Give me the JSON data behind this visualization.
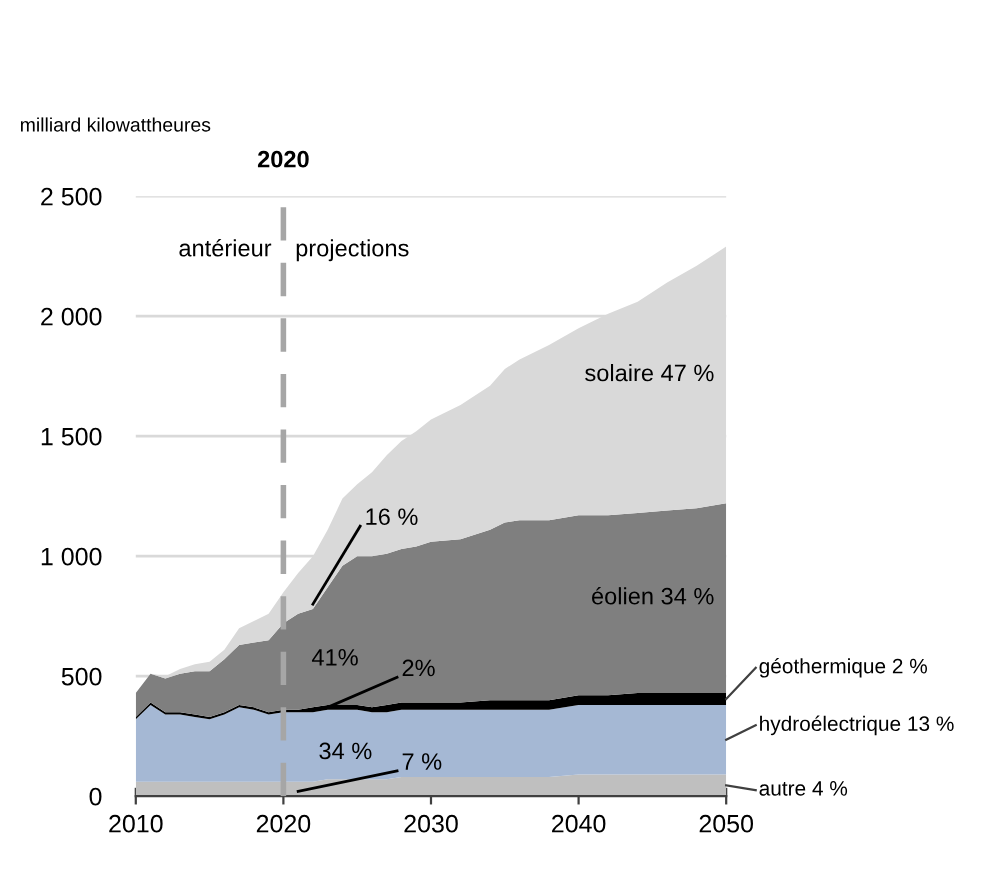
{
  "chart_data": {
    "type": "area",
    "stacked": true,
    "ylabel": "milliard kilowattheures",
    "x": [
      2010,
      2011,
      2012,
      2013,
      2014,
      2015,
      2016,
      2017,
      2018,
      2019,
      2020,
      2021,
      2022,
      2023,
      2024,
      2025,
      2026,
      2027,
      2028,
      2029,
      2030,
      2032,
      2034,
      2035,
      2036,
      2038,
      2040,
      2042,
      2044,
      2046,
      2048,
      2050
    ],
    "series": [
      {
        "name": "autre 4 %",
        "color": "#bfbfbf",
        "values": [
          60,
          60,
          60,
          60,
          60,
          60,
          60,
          60,
          60,
          60,
          60,
          60,
          60,
          70,
          70,
          70,
          70,
          70,
          80,
          80,
          80,
          80,
          80,
          80,
          80,
          80,
          90,
          90,
          90,
          90,
          90,
          90
        ]
      },
      {
        "name": "hydroélectrique 13 %",
        "color": "#a5b8d4",
        "values": [
          260,
          320,
          280,
          280,
          270,
          260,
          280,
          310,
          300,
          280,
          290,
          290,
          290,
          290,
          290,
          290,
          280,
          280,
          280,
          280,
          280,
          280,
          280,
          280,
          280,
          280,
          290,
          290,
          290,
          290,
          290,
          290
        ]
      },
      {
        "name": "géothermique 2 %",
        "color": "#000000",
        "values": [
          10,
          10,
          10,
          10,
          10,
          10,
          10,
          10,
          10,
          10,
          10,
          10,
          20,
          20,
          20,
          20,
          20,
          30,
          30,
          30,
          30,
          30,
          40,
          40,
          40,
          40,
          40,
          40,
          50,
          50,
          50,
          50
        ]
      },
      {
        "name": "éolien 34 %",
        "color": "#7f7f7f",
        "values": [
          100,
          120,
          140,
          160,
          180,
          190,
          220,
          250,
          270,
          300,
          360,
          400,
          410,
          490,
          580,
          620,
          630,
          630,
          640,
          650,
          670,
          680,
          710,
          740,
          750,
          750,
          750,
          750,
          750,
          760,
          770,
          790
        ]
      },
      {
        "name": "solaire 47 %",
        "color": "#d9d9d9",
        "values": [
          0,
          0,
          10,
          20,
          30,
          40,
          40,
          70,
          90,
          110,
          130,
          170,
          220,
          240,
          280,
          300,
          350,
          410,
          450,
          480,
          510,
          560,
          600,
          640,
          670,
          730,
          780,
          840,
          880,
          950,
          1010,
          1070
        ]
      }
    ],
    "xlim": [
      2010,
      2050
    ],
    "xticks": [
      2010,
      2020,
      2030,
      2040,
      2050
    ],
    "ylim": [
      0,
      2500
    ],
    "yticks": [
      0,
      500,
      {
        "value": 1000,
        "label": "1 000"
      },
      {
        "value": 1500,
        "label": "1 500"
      },
      {
        "value": 2000,
        "label": "2 000"
      },
      {
        "value": 2500,
        "label": "2 500"
      }
    ],
    "grid": "y",
    "legend": false,
    "ref_lines": [
      {
        "axis": "x",
        "value": 2020,
        "label": "2020",
        "color": "#a6a6a6",
        "line_style": "dashed"
      }
    ],
    "annotations": [
      "antérieur",
      "projections",
      {
        "text": "16 %",
        "x": 2022,
        "y": 800
      },
      "41%",
      {
        "text": "2%",
        "x": 2023,
        "y": 370
      },
      "34 %",
      {
        "text": "7 %",
        "x": 2021,
        "y": 20
      }
    ]
  }
}
